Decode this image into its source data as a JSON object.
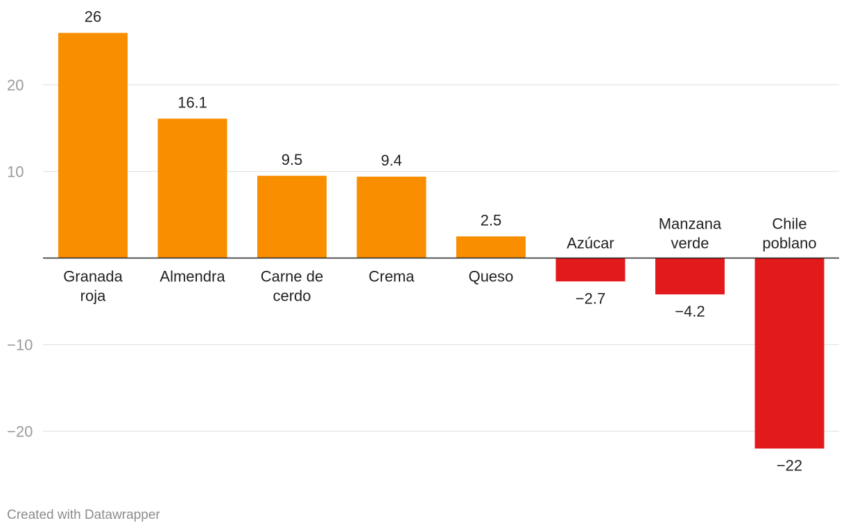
{
  "chart_data": {
    "type": "bar",
    "categories": [
      [
        "Granada",
        "roja"
      ],
      [
        "Almendra"
      ],
      [
        "Carne de",
        "cerdo"
      ],
      [
        "Crema"
      ],
      [
        "Queso"
      ],
      [
        "Azúcar"
      ],
      [
        "Manzana",
        "verde"
      ],
      [
        "Chile",
        "poblano"
      ]
    ],
    "values": [
      26,
      16.1,
      9.5,
      9.4,
      2.5,
      -2.7,
      -4.2,
      -22
    ],
    "value_labels": [
      "26",
      "16.1",
      "9.5",
      "9.4",
      "2.5",
      "−2.7",
      "−4.2",
      "−22"
    ],
    "yticks": [
      20,
      10,
      -10,
      -20
    ],
    "ytick_labels": [
      "20",
      "10",
      "−10",
      "−20"
    ],
    "ylim": [
      -24,
      28
    ],
    "colors": {
      "positive": "#f88e00",
      "negative": "#e31a1c"
    },
    "title": "",
    "xlabel": "",
    "ylabel": "",
    "grid": true,
    "legend": "none"
  },
  "credit": "Created with Datawrapper"
}
